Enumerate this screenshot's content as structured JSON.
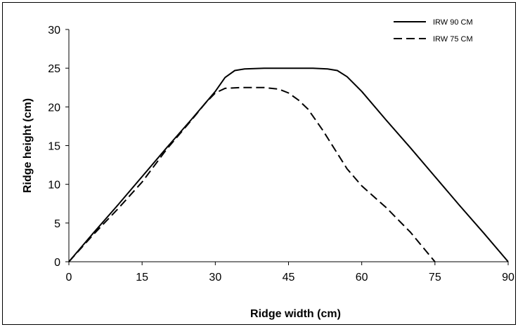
{
  "chart_data": {
    "type": "line",
    "xlabel": "Ridge width (cm)",
    "ylabel": "Ridge height (cm)",
    "xlim": [
      0,
      90
    ],
    "ylim": [
      0,
      30
    ],
    "xticks": [
      0,
      15,
      30,
      45,
      60,
      75,
      90
    ],
    "yticks": [
      0,
      5,
      10,
      15,
      20,
      25,
      30
    ],
    "grid": false,
    "legend_position": "top-right",
    "series": [
      {
        "name": "IRW 90 CM",
        "style": "solid",
        "color": "#000000",
        "points": [
          [
            0,
            0
          ],
          [
            5,
            3.7
          ],
          [
            10,
            7.3
          ],
          [
            15,
            11
          ],
          [
            20,
            14.7
          ],
          [
            25,
            18.3
          ],
          [
            30,
            22
          ],
          [
            32,
            23.8
          ],
          [
            34,
            24.7
          ],
          [
            36,
            24.9
          ],
          [
            40,
            25
          ],
          [
            50,
            25
          ],
          [
            53,
            24.9
          ],
          [
            55,
            24.7
          ],
          [
            57,
            23.9
          ],
          [
            60,
            22
          ],
          [
            65,
            18.3
          ],
          [
            70,
            14.7
          ],
          [
            75,
            11
          ],
          [
            80,
            7.3
          ],
          [
            85,
            3.7
          ],
          [
            90,
            0
          ]
        ]
      },
      {
        "name": "IRW 75 CM",
        "style": "dashed",
        "color": "#000000",
        "points": [
          [
            0,
            0
          ],
          [
            5,
            3.5
          ],
          [
            10,
            6.8
          ],
          [
            15,
            10.3
          ],
          [
            20,
            14.5
          ],
          [
            25,
            18.2
          ],
          [
            28,
            20.5
          ],
          [
            30,
            21.8
          ],
          [
            32,
            22.4
          ],
          [
            35,
            22.5
          ],
          [
            40,
            22.5
          ],
          [
            43,
            22.3
          ],
          [
            45,
            21.8
          ],
          [
            47,
            20.9
          ],
          [
            49,
            19.7
          ],
          [
            52,
            17
          ],
          [
            55,
            14
          ],
          [
            57,
            12
          ],
          [
            60,
            9.8
          ],
          [
            65,
            7
          ],
          [
            70,
            3.8
          ],
          [
            75,
            0
          ]
        ]
      }
    ]
  }
}
